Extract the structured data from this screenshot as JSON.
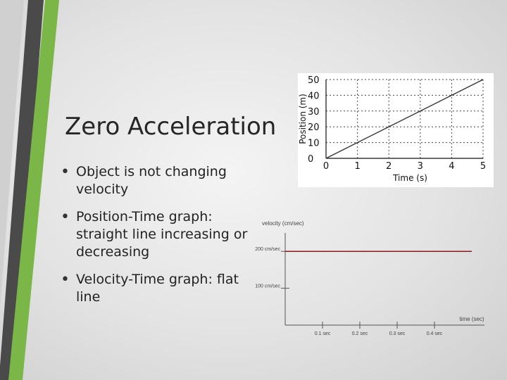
{
  "slide": {
    "title": "Zero Acceleration",
    "bullets": [
      "Object is not changing velocity",
      "Position-Time graph: straight line increasing or decreasing",
      "Velocity-Time graph: flat line"
    ],
    "colors": {
      "accent_green": "#7ab648",
      "dark_stripe": "#4a4a4a"
    }
  },
  "chart_data": [
    {
      "type": "line",
      "xlabel": "Time (s)",
      "ylabel": "Position (m)",
      "x_ticks": [
        "0",
        "1",
        "2",
        "3",
        "4",
        "5"
      ],
      "y_ticks": [
        "0",
        "10",
        "20",
        "30",
        "40",
        "50"
      ],
      "xlim": [
        0,
        5
      ],
      "ylim": [
        0,
        50
      ],
      "grid": "dotted",
      "series": [
        {
          "x": [
            0,
            5
          ],
          "y": [
            0,
            50
          ]
        }
      ]
    },
    {
      "type": "line",
      "xlabel": "time (sec)",
      "ylabel": "velocity (cm/sec)",
      "x_ticks": [
        "0.1 sec",
        "0.2 sec",
        "0.3 sec",
        "0.4 sec"
      ],
      "y_ticks": [
        "100 cm/sec",
        "200 cm/sec"
      ],
      "xlim": [
        0,
        0.5
      ],
      "ylim": [
        0,
        250
      ],
      "series": [
        {
          "x": [
            0,
            0.5
          ],
          "y": [
            200,
            200
          ]
        }
      ]
    }
  ]
}
